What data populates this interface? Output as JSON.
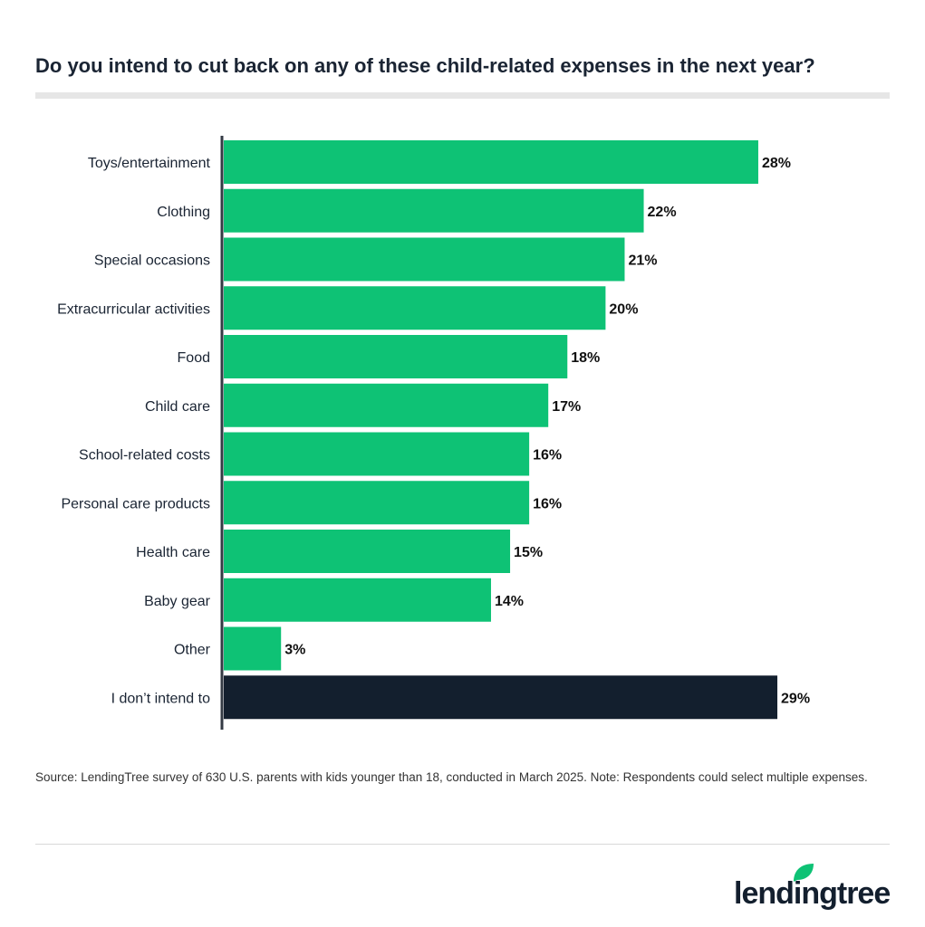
{
  "title": "Do you intend to cut back on any of these child-related expenses in the next year?",
  "source": "Source: LendingTree survey of 630 U.S. parents with kids younger than 18, conducted in March 2025. Note: Respondents could select multiple expenses.",
  "logo_text": "lendingtree",
  "colors": {
    "primary": "#0ec275",
    "highlight": "#131f2e",
    "axis": "#333a44"
  },
  "chart_data": {
    "type": "bar",
    "orientation": "horizontal",
    "categories": [
      "Toys/entertainment",
      "Clothing",
      "Special occasions",
      "Extracurricular activities",
      "Food",
      "Child care",
      "School-related costs",
      "Personal care products",
      "Health care",
      "Baby gear",
      "Other",
      "I don’t intend to"
    ],
    "values": [
      28,
      22,
      21,
      20,
      18,
      17,
      16,
      16,
      15,
      14,
      3,
      29
    ],
    "value_labels": [
      "28%",
      "22%",
      "21%",
      "20%",
      "18%",
      "17%",
      "16%",
      "16%",
      "15%",
      "14%",
      "3%",
      "29%"
    ],
    "highlighted_category": "I don’t intend to",
    "unit": "%",
    "xlim": [
      0,
      30
    ],
    "grid": false,
    "legend": "none"
  }
}
